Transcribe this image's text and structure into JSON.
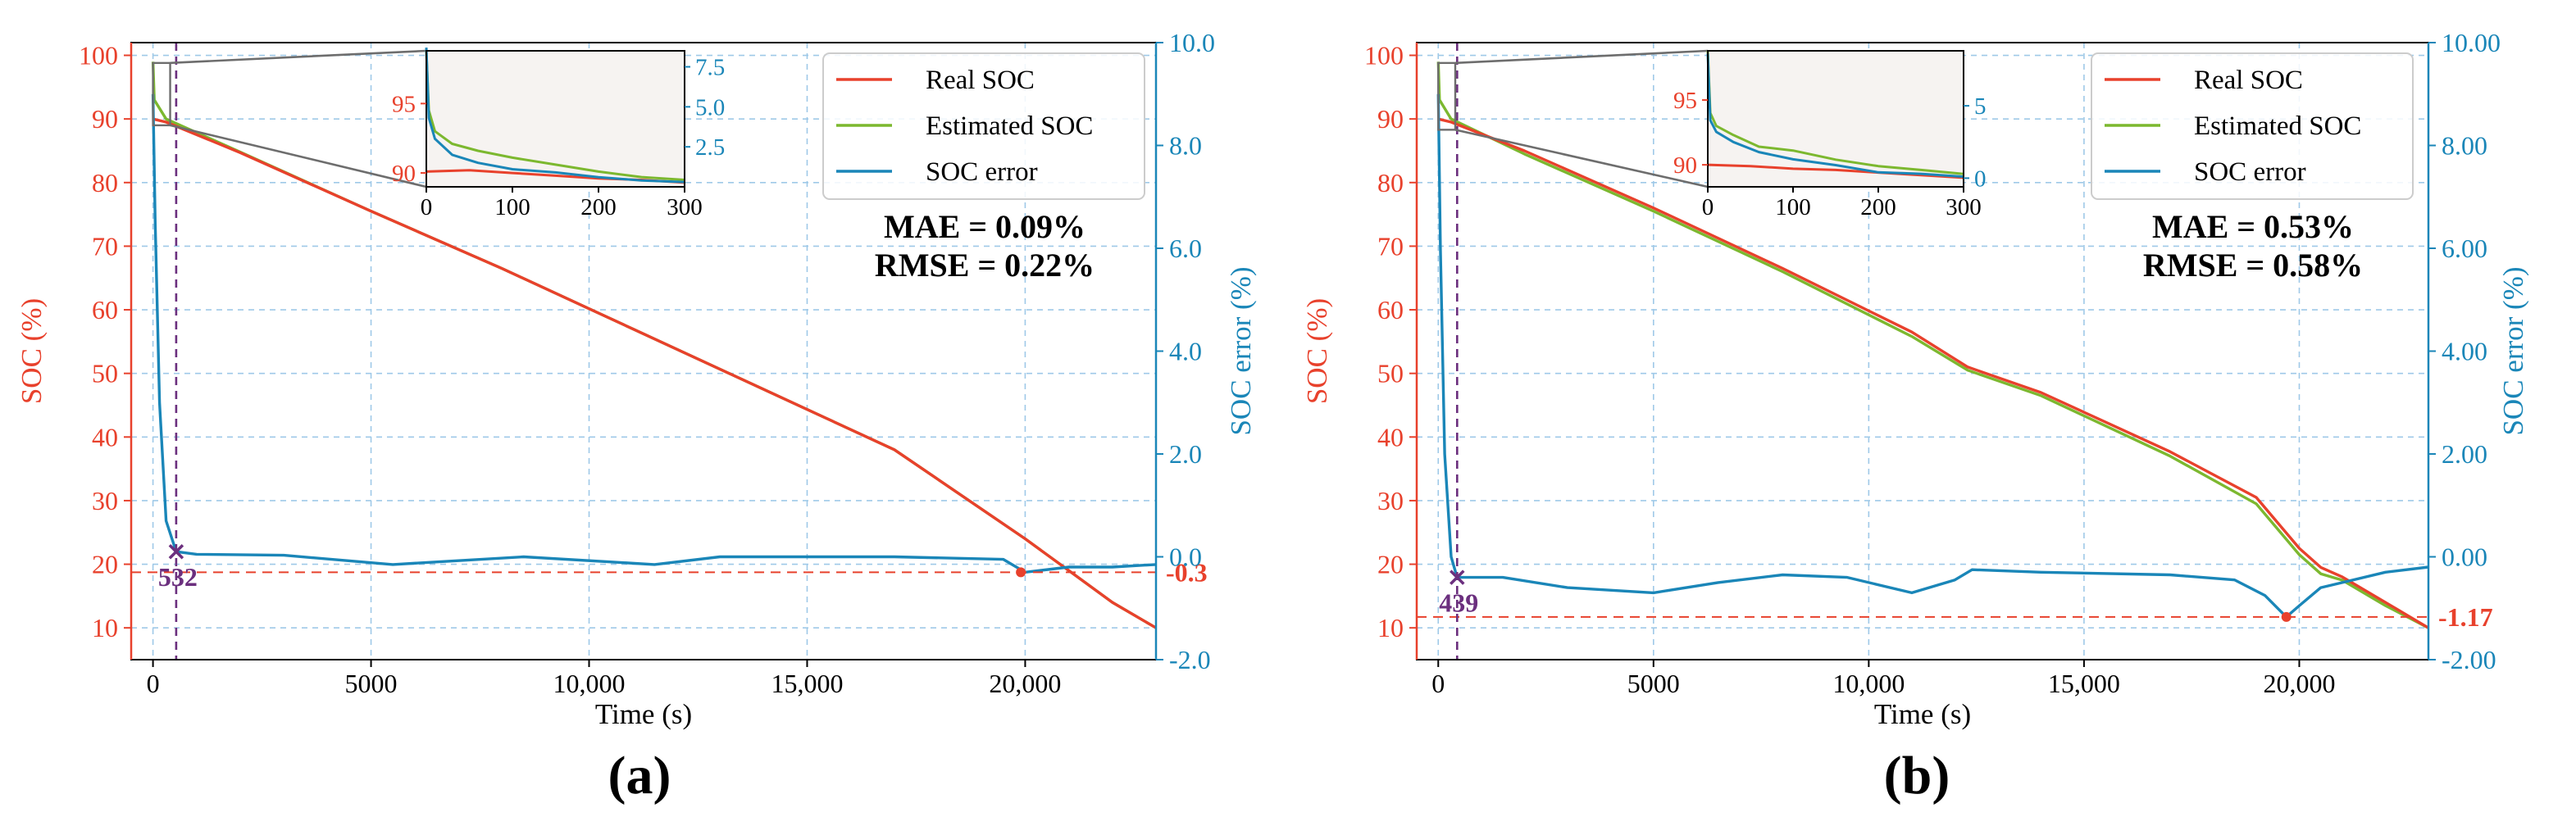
{
  "colors": {
    "real": "#e8412c",
    "estimated": "#7cb82f",
    "error": "#1a86b8",
    "marker": "#6b2f7e",
    "grid": "#9fc9e8",
    "inset_bg": "#f6f3f1",
    "zoom_line": "#6d6d6d"
  },
  "chart_data": [
    {
      "type": "line",
      "panel_label": "(a)",
      "xlabel": "Time (s)",
      "ylabel_left": "SOC (%)",
      "ylabel_right": "SOC error (%)",
      "xlim": [
        -500,
        23000
      ],
      "ylim_left": [
        5,
        102
      ],
      "ylim_right": [
        -2,
        10
      ],
      "x_ticks": [
        0,
        5000,
        10000,
        15000,
        20000
      ],
      "x_tick_labels": [
        "0",
        "5000",
        "10,000",
        "15,000",
        "20,000"
      ],
      "y_left_ticks": [
        10,
        20,
        30,
        40,
        50,
        60,
        70,
        80,
        90,
        100
      ],
      "y_left_tick_labels": [
        "10",
        "20",
        "30",
        "40",
        "50",
        "60",
        "70",
        "80",
        "90",
        "100"
      ],
      "y_right_ticks": [
        -2,
        0,
        2,
        4,
        6,
        8,
        10
      ],
      "y_right_tick_labels": [
        "-2.0",
        "0.0",
        "2.0",
        "4.0",
        "6.0",
        "8.0",
        "10.0"
      ],
      "legend": [
        "Real SOC",
        "Estimated SOC",
        "SOC error"
      ],
      "legend_position": "top-right",
      "grid": true,
      "metrics": [
        "MAE = 0.09%",
        "RMSE = 0.22%"
      ],
      "convergence_marker": {
        "x": 532,
        "y_error": 0.1,
        "label": "532"
      },
      "min_error": {
        "x": 19900,
        "value": -0.3,
        "label": "-0.3"
      },
      "series": [
        {
          "name": "Real SOC",
          "axis": "left",
          "x": [
            0,
            300,
            2000,
            5000,
            8000,
            11000,
            14000,
            17000,
            20000,
            21000,
            22000,
            23000
          ],
          "values": [
            90,
            89.5,
            84.7,
            75.5,
            66.5,
            57,
            47.5,
            38,
            24,
            19,
            14,
            10
          ]
        },
        {
          "name": "Estimated SOC",
          "axis": "left",
          "x": [
            0,
            30,
            300,
            2000,
            5000,
            8000,
            11000,
            14000,
            17000,
            20000,
            21000,
            22000,
            23000
          ],
          "values": [
            99,
            93,
            90,
            84.8,
            75.5,
            66.5,
            57,
            47.5,
            38,
            24,
            19,
            14,
            10
          ]
        },
        {
          "name": "SOC error",
          "axis": "right",
          "x": [
            0,
            50,
            150,
            300,
            532,
            1000,
            3000,
            5500,
            8500,
            11500,
            13000,
            17000,
            19500,
            20000,
            21000,
            22000,
            23000
          ],
          "values": [
            9.0,
            6.5,
            3.0,
            0.7,
            0.1,
            0.05,
            0.03,
            -0.15,
            0.0,
            -0.15,
            0.0,
            0.0,
            -0.05,
            -0.3,
            -0.2,
            -0.2,
            -0.15
          ]
        }
      ],
      "inset": {
        "xlim": [
          0,
          300
        ],
        "x_ticks": [
          0,
          100,
          200,
          300
        ],
        "y_left_ticks": [
          90,
          95
        ],
        "y_left_tick_labels": [
          "90",
          "95"
        ],
        "y_left_lim": [
          89.0,
          98.8
        ],
        "y_right_ticks": [
          2.5,
          5.0,
          7.5
        ],
        "y_right_tick_labels": [
          "2.5",
          "5.0",
          "7.5"
        ],
        "y_right_lim": [
          0.0,
          8.5
        ],
        "series": [
          {
            "name": "Real SOC",
            "axis": "left",
            "x": [
              0,
              50,
              100,
              150,
              200,
              250,
              300
            ],
            "values": [
              90.1,
              90.2,
              90.0,
              89.8,
              89.6,
              89.5,
              89.3
            ]
          },
          {
            "name": "Estimated SOC",
            "axis": "left",
            "x": [
              0,
              3,
              10,
              30,
              60,
              100,
              150,
              200,
              250,
              300
            ],
            "values": [
              98.8,
              94.5,
              93.0,
              92.1,
              91.6,
              91.1,
              90.6,
              90.1,
              89.7,
              89.5
            ]
          },
          {
            "name": "SOC error",
            "axis": "right",
            "x": [
              0,
              3,
              10,
              30,
              60,
              100,
              150,
              200,
              250,
              300
            ],
            "values": [
              8.7,
              4.3,
              3.0,
              2.0,
              1.5,
              1.1,
              0.9,
              0.6,
              0.4,
              0.3
            ]
          }
        ]
      }
    },
    {
      "type": "line",
      "panel_label": "(b)",
      "xlabel": "Time (s)",
      "ylabel_left": "SOC (%)",
      "ylabel_right": "SOC error (%)",
      "xlim": [
        -500,
        23000
      ],
      "ylim_left": [
        5,
        102
      ],
      "ylim_right": [
        -2,
        10
      ],
      "x_ticks": [
        0,
        5000,
        10000,
        15000,
        20000
      ],
      "x_tick_labels": [
        "0",
        "5000",
        "10,000",
        "15,000",
        "20,000"
      ],
      "y_left_ticks": [
        10,
        20,
        30,
        40,
        50,
        60,
        70,
        80,
        90,
        100
      ],
      "y_left_tick_labels": [
        "10",
        "20",
        "30",
        "40",
        "50",
        "60",
        "70",
        "80",
        "90",
        "100"
      ],
      "y_right_ticks": [
        -2,
        0,
        2,
        4,
        6,
        8,
        10
      ],
      "y_right_tick_labels": [
        "-2.00",
        "0.00",
        "2.00",
        "4.00",
        "6.00",
        "8.00",
        "10.00"
      ],
      "legend": [
        "Real SOC",
        "Estimated SOC",
        "SOC error"
      ],
      "legend_position": "top-right",
      "grid": true,
      "metrics": [
        "MAE = 0.53%",
        "RMSE = 0.58%"
      ],
      "convergence_marker": {
        "x": 439,
        "y_error": -0.4,
        "label": "439"
      },
      "min_error": {
        "x": 19700,
        "value": -1.17,
        "label": "-1.17"
      },
      "series": [
        {
          "name": "Real SOC",
          "axis": "left",
          "x": [
            0,
            300,
            2000,
            5000,
            8000,
            11000,
            12300,
            14000,
            17000,
            19000,
            20000,
            20500,
            21000,
            22000,
            23000
          ],
          "values": [
            90,
            89.5,
            85,
            76,
            66.5,
            56.5,
            51,
            47,
            37.7,
            30.5,
            22.5,
            19.5,
            18,
            14,
            10
          ]
        },
        {
          "name": "Estimated SOC",
          "axis": "left",
          "x": [
            0,
            30,
            300,
            2000,
            5000,
            8000,
            11000,
            12300,
            14000,
            17000,
            19000,
            20000,
            20500,
            21000,
            22000,
            23000
          ],
          "values": [
            99,
            93,
            90,
            84.5,
            75.5,
            66,
            55.8,
            50.5,
            46.5,
            37,
            29.5,
            21.5,
            18.5,
            17.5,
            13.5,
            10
          ]
        },
        {
          "name": "SOC error",
          "axis": "right",
          "x": [
            0,
            50,
            150,
            300,
            439,
            600,
            1500,
            3000,
            5000,
            6500,
            8000,
            9500,
            11000,
            12000,
            12400,
            14000,
            17000,
            18500,
            19200,
            19700,
            20000,
            20500,
            21000,
            22000,
            23000
          ],
          "values": [
            9.0,
            6.0,
            2.0,
            0.0,
            -0.4,
            -0.4,
            -0.4,
            -0.6,
            -0.7,
            -0.5,
            -0.35,
            -0.4,
            -0.7,
            -0.45,
            -0.25,
            -0.3,
            -0.35,
            -0.45,
            -0.75,
            -1.17,
            -0.95,
            -0.6,
            -0.5,
            -0.3,
            -0.2
          ]
        }
      ],
      "inset": {
        "xlim": [
          0,
          300
        ],
        "x_ticks": [
          0,
          100,
          200,
          300
        ],
        "y_left_ticks": [
          90,
          95
        ],
        "y_left_tick_labels": [
          "90",
          "95"
        ],
        "y_left_lim": [
          88.3,
          98.8
        ],
        "y_right_ticks": [
          0,
          5
        ],
        "y_right_tick_labels": [
          "0",
          "5"
        ],
        "y_right_lim": [
          -0.6,
          8.8
        ],
        "series": [
          {
            "name": "Real SOC",
            "axis": "left",
            "x": [
              0,
              50,
              100,
              150,
              200,
              250,
              300
            ],
            "values": [
              90.0,
              89.9,
              89.7,
              89.6,
              89.4,
              89.2,
              89.0
            ]
          },
          {
            "name": "Estimated SOC",
            "axis": "left",
            "x": [
              0,
              3,
              10,
              30,
              60,
              100,
              150,
              200,
              250,
              300
            ],
            "values": [
              98.8,
              94.0,
              93.0,
              92.3,
              91.4,
              91.1,
              90.4,
              89.9,
              89.6,
              89.3
            ]
          },
          {
            "name": "SOC error",
            "axis": "right",
            "x": [
              0,
              3,
              10,
              30,
              60,
              100,
              150,
              200,
              250,
              300
            ],
            "values": [
              8.6,
              4.0,
              3.2,
              2.5,
              1.8,
              1.3,
              0.9,
              0.4,
              0.3,
              0.1
            ]
          }
        ]
      }
    }
  ]
}
